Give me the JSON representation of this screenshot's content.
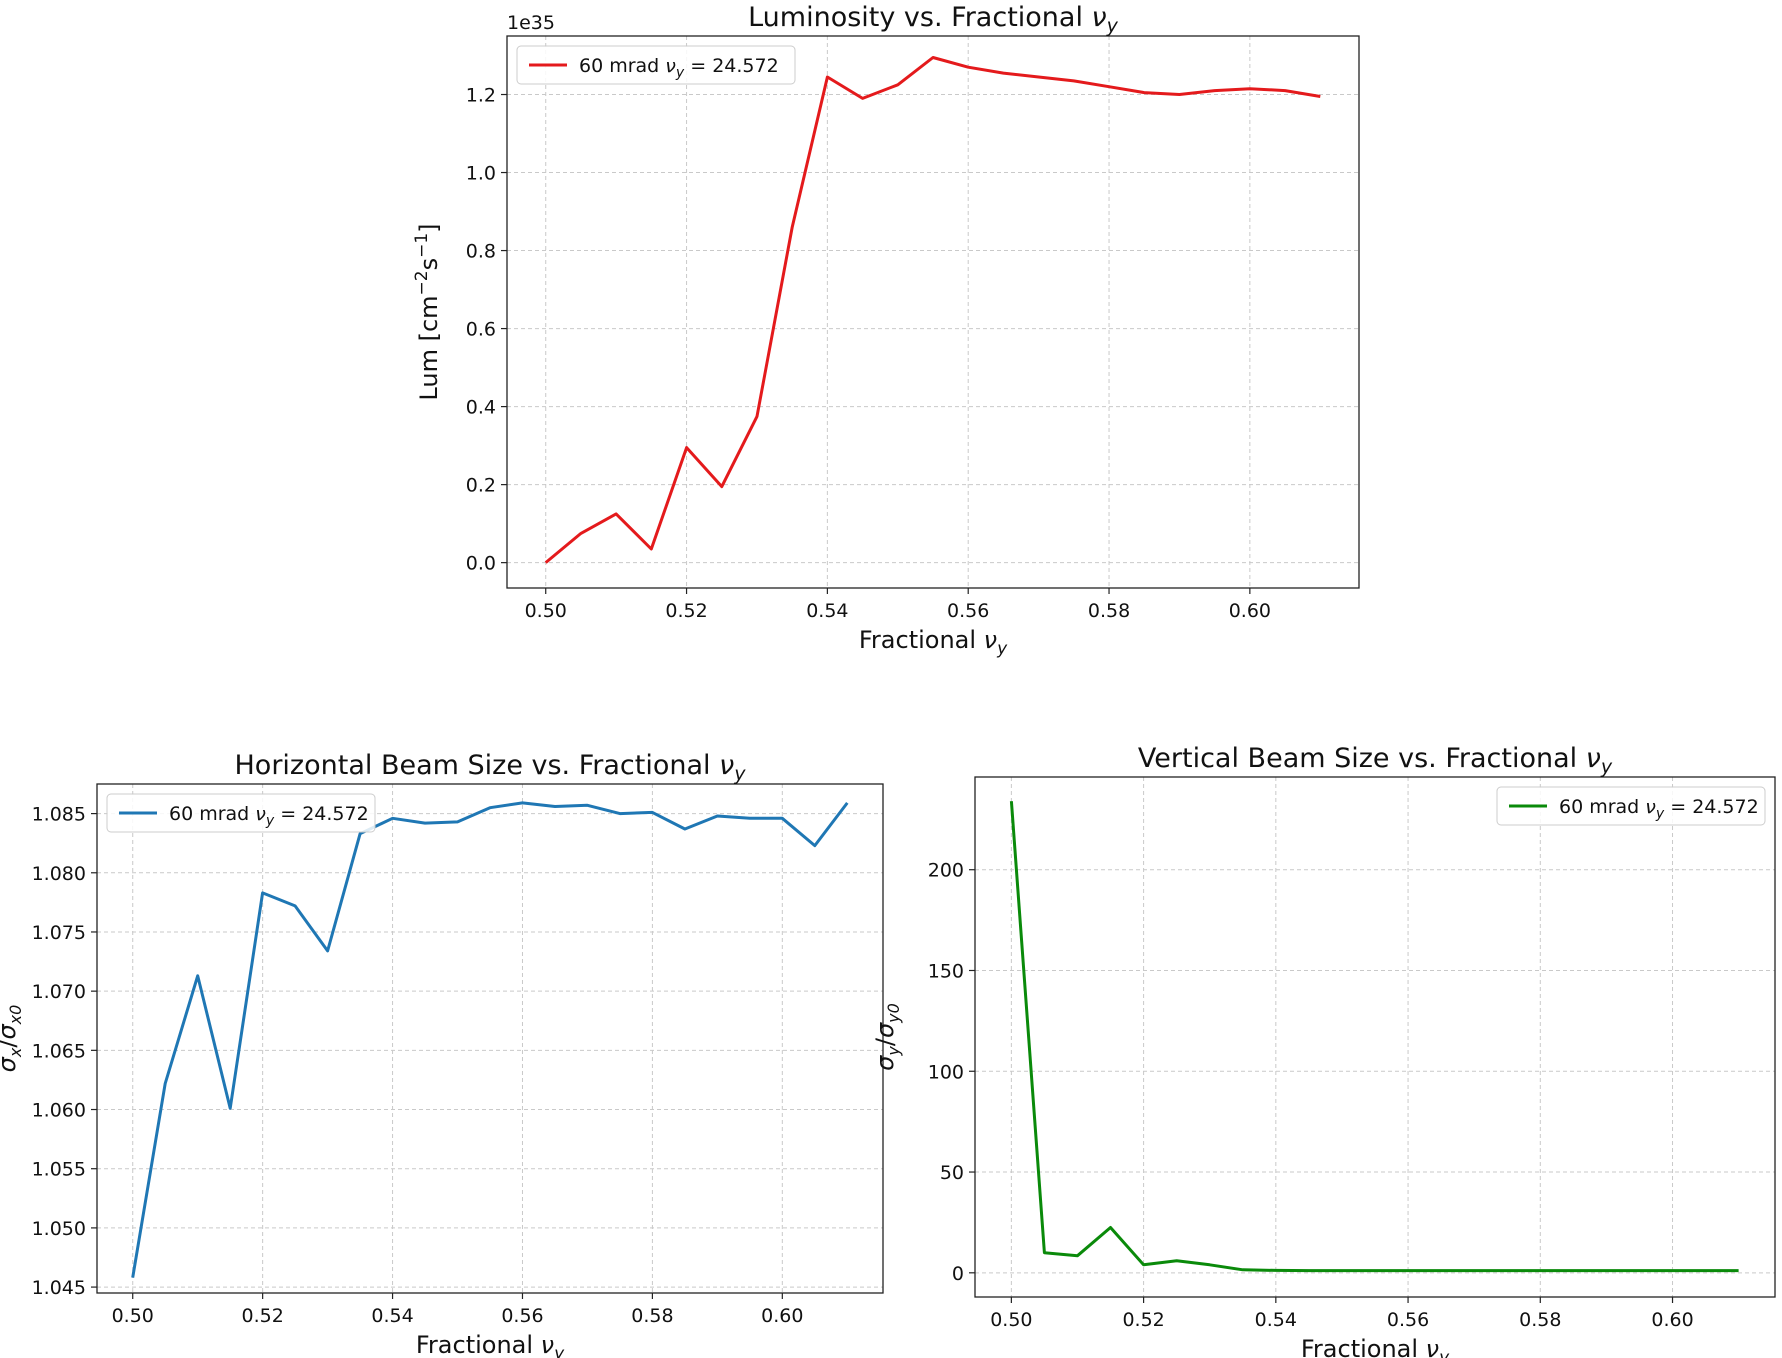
{
  "chart_data": [
    {
      "type": "line",
      "title": "Luminosity vs. Fractional νy",
      "title_base": "Luminosity vs. Fractional ",
      "xlabel": "Fractional νy",
      "xlabel_base": "Fractional ",
      "ylabel": "Lum [cm⁻²s⁻¹]",
      "ylabel_base": "Lum [cm",
      "ylabel_mid": "s",
      "y_offset_text": "1e35",
      "xlim": [
        0.4945,
        0.6155
      ],
      "ylim": [
        -0.065,
        1.35
      ],
      "xticks": [
        0.5,
        0.52,
        0.54,
        0.56,
        0.58,
        0.6
      ],
      "xtick_labels": [
        "0.50",
        "0.52",
        "0.54",
        "0.56",
        "0.58",
        "0.60"
      ],
      "yticks": [
        0.0,
        0.2,
        0.4,
        0.6,
        0.8,
        1.0,
        1.2
      ],
      "ytick_labels": [
        "0.0",
        "0.2",
        "0.4",
        "0.6",
        "0.8",
        "1.0",
        "1.2"
      ],
      "grid": true,
      "legend_position": "top-left",
      "series": [
        {
          "name": "60 mrad νy = 24.572",
          "legend_prefix": "60 mrad ",
          "legend_suffix": " = 24.572",
          "color": "#e41a1c",
          "x": [
            0.5,
            0.505,
            0.51,
            0.515,
            0.52,
            0.525,
            0.53,
            0.535,
            0.54,
            0.545,
            0.55,
            0.555,
            0.56,
            0.565,
            0.57,
            0.575,
            0.58,
            0.585,
            0.59,
            0.595,
            0.6,
            0.605,
            0.61
          ],
          "y": [
            0.0,
            0.075,
            0.125,
            0.035,
            0.295,
            0.195,
            0.375,
            0.86,
            1.245,
            1.19,
            1.225,
            1.295,
            1.27,
            1.255,
            1.245,
            1.235,
            1.22,
            1.205,
            1.2,
            1.21,
            1.215,
            1.21,
            1.195
          ]
        }
      ]
    },
    {
      "type": "line",
      "title": "Horizontal Beam Size vs. Fractional νy",
      "title_base": "Horizontal Beam Size vs. Fractional ",
      "xlabel": "Fractional νy",
      "xlabel_base": "Fractional ",
      "ylabel": "σx/σx0",
      "xlim": [
        0.4945,
        0.6155
      ],
      "ylim": [
        1.0445,
        1.0875
      ],
      "xticks": [
        0.5,
        0.52,
        0.54,
        0.56,
        0.58,
        0.6
      ],
      "xtick_labels": [
        "0.50",
        "0.52",
        "0.54",
        "0.56",
        "0.58",
        "0.60"
      ],
      "yticks": [
        1.045,
        1.05,
        1.055,
        1.06,
        1.065,
        1.07,
        1.075,
        1.08,
        1.085
      ],
      "ytick_labels": [
        "1.045",
        "1.050",
        "1.055",
        "1.060",
        "1.065",
        "1.070",
        "1.075",
        "1.080",
        "1.085"
      ],
      "grid": true,
      "legend_position": "top-left",
      "series": [
        {
          "name": "60 mrad νy = 24.572",
          "legend_prefix": "60 mrad ",
          "legend_suffix": " = 24.572",
          "color": "#1f77b4",
          "x": [
            0.5,
            0.505,
            0.51,
            0.515,
            0.52,
            0.525,
            0.53,
            0.535,
            0.54,
            0.545,
            0.55,
            0.555,
            0.56,
            0.565,
            0.57,
            0.575,
            0.58,
            0.585,
            0.59,
            0.595,
            0.6,
            0.605,
            0.61
          ],
          "y": [
            1.0458,
            1.0622,
            1.0713,
            1.0601,
            1.0783,
            1.0772,
            1.0734,
            1.0833,
            1.0846,
            1.0842,
            1.0843,
            1.0855,
            1.0859,
            1.0856,
            1.0857,
            1.085,
            1.0851,
            1.0837,
            1.0848,
            1.0846,
            1.0846,
            1.0823,
            1.0859
          ]
        }
      ]
    },
    {
      "type": "line",
      "title": "Vertical Beam Size vs. Fractional νy",
      "title_base": "Vertical Beam Size vs. Fractional ",
      "xlabel": "Fractional νy",
      "xlabel_base": "Fractional ",
      "ylabel": "σy/σy0",
      "xlim": [
        0.4945,
        0.6155
      ],
      "ylim": [
        -12,
        246
      ],
      "xticks": [
        0.5,
        0.52,
        0.54,
        0.56,
        0.58,
        0.6
      ],
      "xtick_labels": [
        "0.50",
        "0.52",
        "0.54",
        "0.56",
        "0.58",
        "0.60"
      ],
      "yticks": [
        0,
        50,
        100,
        150,
        200
      ],
      "ytick_labels": [
        "0",
        "50",
        "100",
        "150",
        "200"
      ],
      "grid": true,
      "legend_position": "top-right",
      "series": [
        {
          "name": "60 mrad νy = 24.572",
          "legend_prefix": "60 mrad ",
          "legend_suffix": " = 24.572",
          "color": "#0a8a0a",
          "x": [
            0.5,
            0.505,
            0.51,
            0.515,
            0.52,
            0.525,
            0.53,
            0.535,
            0.54,
            0.545,
            0.55,
            0.555,
            0.56,
            0.565,
            0.57,
            0.575,
            0.58,
            0.585,
            0.59,
            0.595,
            0.6,
            0.605,
            0.61
          ],
          "y": [
            234,
            10,
            8.5,
            22.5,
            4,
            6,
            4,
            1.5,
            1.2,
            1.1,
            1.1,
            1.1,
            1.1,
            1.1,
            1.1,
            1.1,
            1.1,
            1.1,
            1.1,
            1.1,
            1.1,
            1.1,
            1.1
          ]
        }
      ]
    }
  ]
}
